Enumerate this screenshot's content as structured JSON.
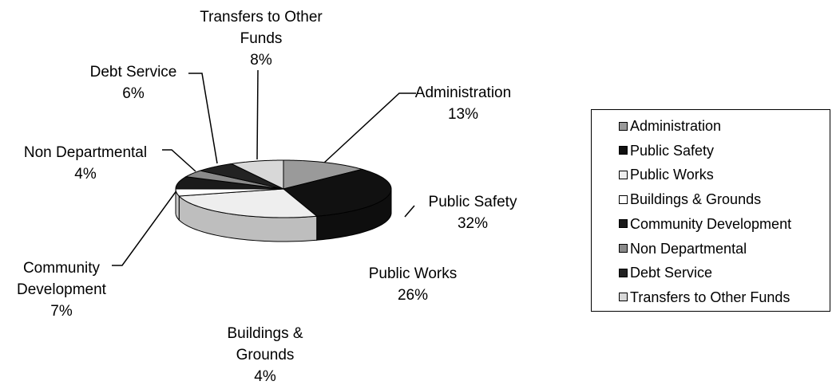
{
  "chart_data": {
    "type": "pie",
    "categories": [
      "Administration",
      "Public Safety",
      "Public Works",
      "Buildings & Grounds",
      "Community Development",
      "Non Departmental",
      "Debt Service",
      "Transfers to Other Funds"
    ],
    "values": [
      13,
      32,
      26,
      4,
      7,
      4,
      6,
      8
    ],
    "value_labels": [
      "13%",
      "32%",
      "26%",
      "4%",
      "7%",
      "4%",
      "6%",
      "8%"
    ],
    "colors": [
      "#9a9a9a",
      "#111111",
      "#eeeeee",
      "#ffffff",
      "#1a1a1a",
      "#8a8a8a",
      "#222222",
      "#d8d8d8"
    ],
    "legend": "right"
  }
}
